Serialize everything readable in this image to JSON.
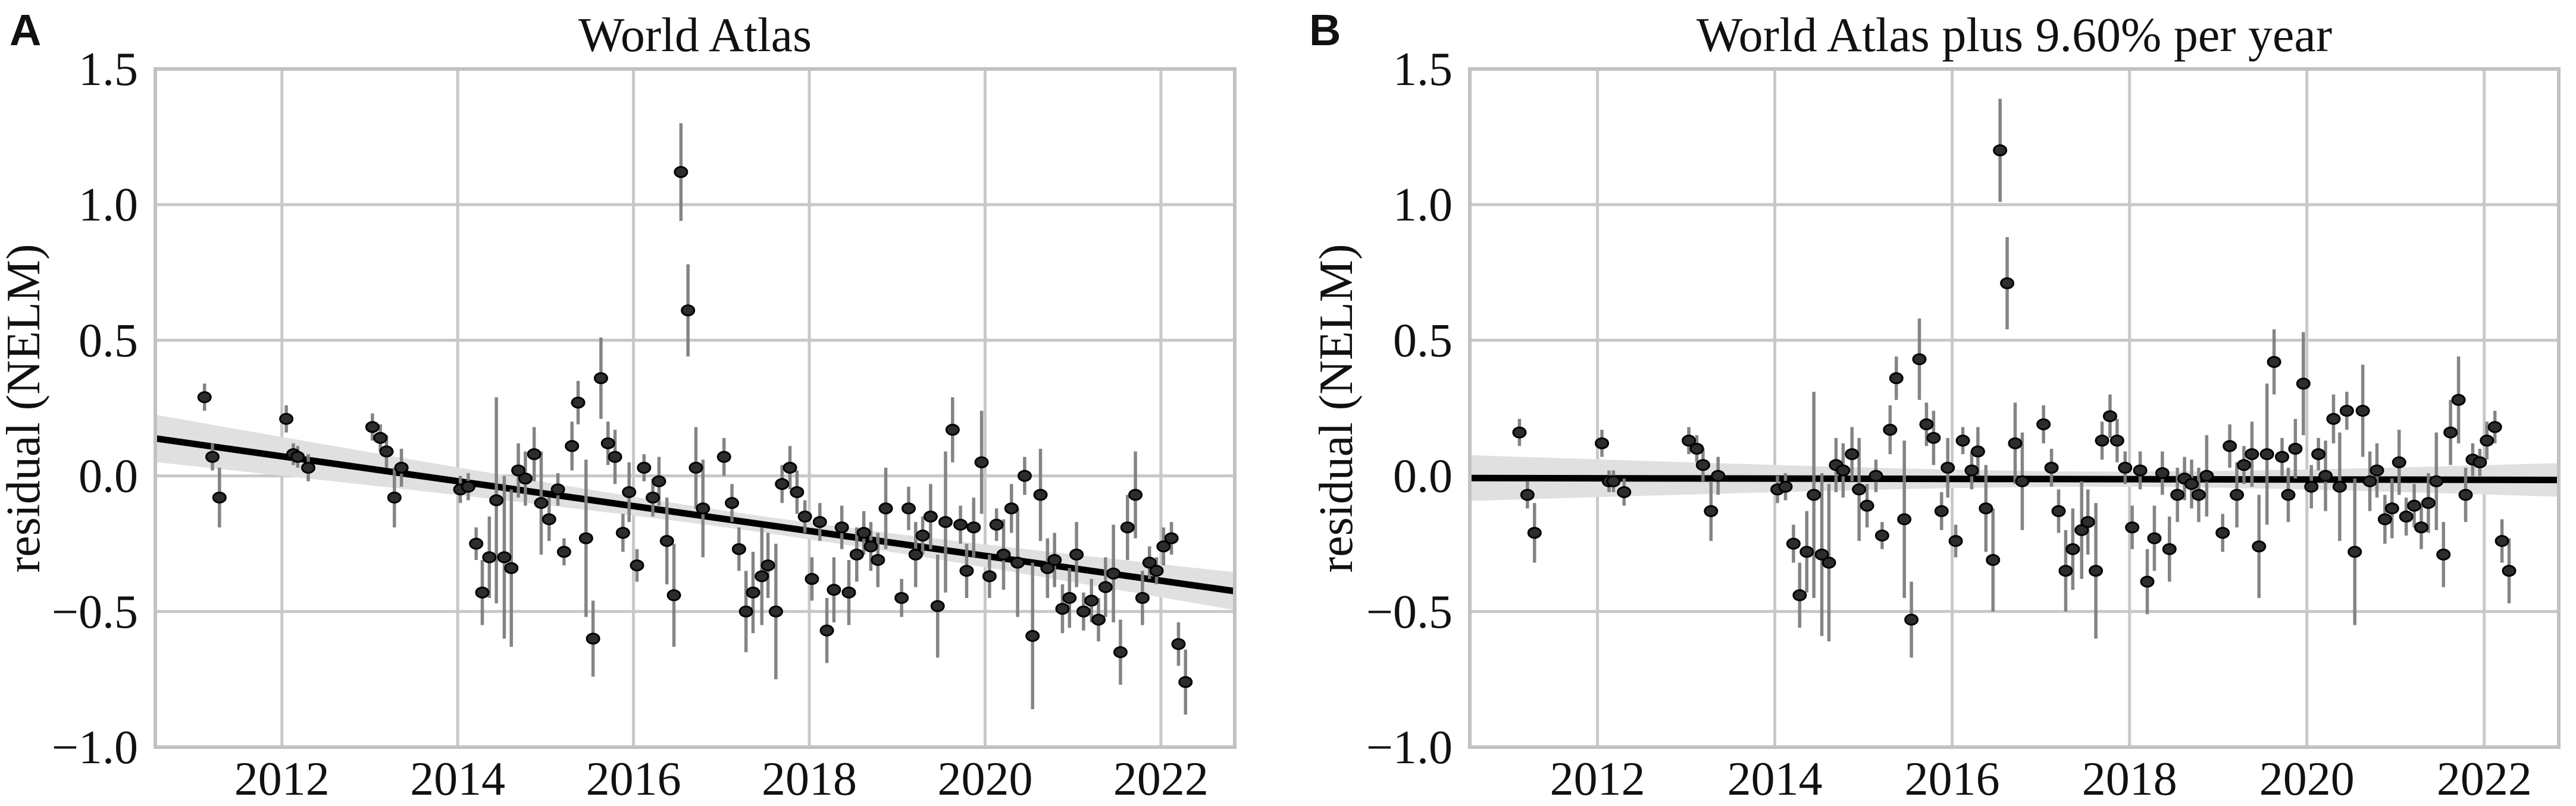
{
  "colors": {
    "background": "#ffffff",
    "grid": "#c8c8c8",
    "spine": "#c2c2c2",
    "confidence_band": "#e0e0e0",
    "trend_line": "#000000",
    "error_bar": "#7d7d7d",
    "marker_fill": "#2d2d2d",
    "marker_edge": "#000000",
    "text": "#111111"
  },
  "chart_data": [
    {
      "type": "scatter",
      "panel_label": "A",
      "title": "World Atlas",
      "xlabel": "",
      "ylabel": "residual (NELM)",
      "grid": true,
      "legend": "none",
      "xlim": [
        2010.56,
        2022.84
      ],
      "ylim": [
        -1.0,
        1.5
      ],
      "xtick_values": [
        2012,
        2014,
        2016,
        2018,
        2020,
        2022
      ],
      "xtick_labels": [
        "2012",
        "2014",
        "2016",
        "2018",
        "2020",
        "2022"
      ],
      "ytick_values": [
        1.5,
        1.0,
        0.5,
        0.0,
        -0.5,
        -1.0
      ],
      "ytick_labels": [
        "1.5",
        "1.0",
        "0.5",
        "0.0",
        "−0.5",
        "−1.0"
      ],
      "trend": {
        "x": [
          2010.56,
          2022.84
        ],
        "y": [
          0.138,
          -0.425
        ]
      },
      "band": {
        "center_year": 2017.5,
        "base_halfwidth": 0.03,
        "growth_per_year": 0.0118
      },
      "points": [
        [
          2011.12,
          0.29,
          0.05
        ],
        [
          2011.21,
          0.07,
          0.05
        ],
        [
          2011.29,
          -0.08,
          0.11
        ],
        [
          2012.05,
          0.21,
          0.05
        ],
        [
          2012.13,
          0.08,
          0.04
        ],
        [
          2012.18,
          0.07,
          0.04
        ],
        [
          2012.3,
          0.03,
          0.05
        ],
        [
          2013.03,
          0.18,
          0.05
        ],
        [
          2013.12,
          0.14,
          0.05
        ],
        [
          2013.19,
          0.09,
          0.06
        ],
        [
          2013.28,
          -0.08,
          0.11
        ],
        [
          2013.36,
          0.03,
          0.07
        ],
        [
          2014.03,
          -0.05,
          0.05
        ],
        [
          2014.12,
          -0.04,
          0.05
        ],
        [
          2014.21,
          -0.25,
          0.06
        ],
        [
          2014.28,
          -0.43,
          0.12
        ],
        [
          2014.36,
          -0.3,
          0.15
        ],
        [
          2014.44,
          -0.09,
          0.38
        ],
        [
          2014.53,
          -0.3,
          0.3
        ],
        [
          2014.61,
          -0.34,
          0.29
        ],
        [
          2014.69,
          0.02,
          0.1
        ],
        [
          2014.77,
          -0.01,
          0.1
        ],
        [
          2014.87,
          0.08,
          0.1
        ],
        [
          2014.95,
          -0.1,
          0.19
        ],
        [
          2015.04,
          -0.16,
          0.08
        ],
        [
          2015.14,
          -0.05,
          0.06
        ],
        [
          2015.21,
          -0.28,
          0.05
        ],
        [
          2015.3,
          0.11,
          0.09
        ],
        [
          2015.37,
          0.27,
          0.08
        ],
        [
          2015.46,
          -0.23,
          0.29
        ],
        [
          2015.54,
          -0.6,
          0.14
        ],
        [
          2015.63,
          0.36,
          0.15
        ],
        [
          2015.71,
          0.12,
          0.08
        ],
        [
          2015.79,
          0.07,
          0.1
        ],
        [
          2015.88,
          -0.21,
          0.07
        ],
        [
          2015.95,
          -0.06,
          0.11
        ],
        [
          2016.04,
          -0.33,
          0.06
        ],
        [
          2016.12,
          0.03,
          0.05
        ],
        [
          2016.22,
          -0.08,
          0.07
        ],
        [
          2016.29,
          -0.02,
          0.09
        ],
        [
          2016.38,
          -0.24,
          0.16
        ],
        [
          2016.46,
          -0.44,
          0.19
        ],
        [
          2016.54,
          1.12,
          0.18
        ],
        [
          2016.62,
          0.61,
          0.17
        ],
        [
          2016.71,
          0.03,
          0.15
        ],
        [
          2016.79,
          -0.12,
          0.18
        ],
        [
          2017.03,
          0.07,
          0.07
        ],
        [
          2017.12,
          -0.1,
          0.07
        ],
        [
          2017.2,
          -0.27,
          0.08
        ],
        [
          2017.28,
          -0.5,
          0.15
        ],
        [
          2017.36,
          -0.43,
          0.15
        ],
        [
          2017.46,
          -0.37,
          0.18
        ],
        [
          2017.53,
          -0.33,
          0.12
        ],
        [
          2017.62,
          -0.5,
          0.25
        ],
        [
          2017.69,
          -0.03,
          0.07
        ],
        [
          2017.78,
          0.03,
          0.08
        ],
        [
          2017.86,
          -0.06,
          0.08
        ],
        [
          2017.95,
          -0.15,
          0.06
        ],
        [
          2018.03,
          -0.38,
          0.08
        ],
        [
          2018.12,
          -0.17,
          0.07
        ],
        [
          2018.2,
          -0.57,
          0.12
        ],
        [
          2018.28,
          -0.42,
          0.12
        ],
        [
          2018.37,
          -0.19,
          0.08
        ],
        [
          2018.45,
          -0.43,
          0.12
        ],
        [
          2018.54,
          -0.29,
          0.1
        ],
        [
          2018.62,
          -0.21,
          0.08
        ],
        [
          2018.7,
          -0.26,
          0.09
        ],
        [
          2018.78,
          -0.31,
          0.1
        ],
        [
          2018.87,
          -0.12,
          0.15
        ],
        [
          2019.05,
          -0.45,
          0.07
        ],
        [
          2019.13,
          -0.12,
          0.08
        ],
        [
          2019.21,
          -0.29,
          0.12
        ],
        [
          2019.29,
          -0.22,
          0.07
        ],
        [
          2019.38,
          -0.15,
          0.12
        ],
        [
          2019.46,
          -0.48,
          0.19
        ],
        [
          2019.55,
          -0.17,
          0.26
        ],
        [
          2019.63,
          0.17,
          0.12
        ],
        [
          2019.72,
          -0.18,
          0.07
        ],
        [
          2019.79,
          -0.35,
          0.1
        ],
        [
          2019.87,
          -0.19,
          0.11
        ],
        [
          2019.96,
          0.05,
          0.19
        ],
        [
          2020.05,
          -0.37,
          0.08
        ],
        [
          2020.13,
          -0.18,
          0.06
        ],
        [
          2020.21,
          -0.29,
          0.13
        ],
        [
          2020.3,
          -0.12,
          0.09
        ],
        [
          2020.37,
          -0.32,
          0.2
        ],
        [
          2020.45,
          0.0,
          0.07
        ],
        [
          2020.54,
          -0.59,
          0.27
        ],
        [
          2020.63,
          -0.07,
          0.17
        ],
        [
          2020.71,
          -0.34,
          0.11
        ],
        [
          2020.79,
          -0.31,
          0.1
        ],
        [
          2020.88,
          -0.49,
          0.09
        ],
        [
          2020.96,
          -0.45,
          0.11
        ],
        [
          2021.04,
          -0.29,
          0.12
        ],
        [
          2021.12,
          -0.5,
          0.07
        ],
        [
          2021.21,
          -0.46,
          0.08
        ],
        [
          2021.29,
          -0.53,
          0.08
        ],
        [
          2021.37,
          -0.41,
          0.11
        ],
        [
          2021.46,
          -0.36,
          0.18
        ],
        [
          2021.54,
          -0.65,
          0.12
        ],
        [
          2021.62,
          -0.19,
          0.12
        ],
        [
          2021.71,
          -0.07,
          0.16
        ],
        [
          2021.79,
          -0.45,
          0.1
        ],
        [
          2021.87,
          -0.32,
          0.06
        ],
        [
          2021.95,
          -0.35,
          0.05
        ],
        [
          2022.03,
          -0.26,
          0.07
        ],
        [
          2022.12,
          -0.23,
          0.06
        ],
        [
          2022.2,
          -0.62,
          0.08
        ],
        [
          2022.28,
          -0.76,
          0.12
        ]
      ]
    },
    {
      "type": "scatter",
      "panel_label": "B",
      "title": "World Atlas plus 9.60% per year",
      "xlabel": "",
      "ylabel": "residual (NELM)",
      "grid": true,
      "legend": "none",
      "xlim": [
        2010.56,
        2022.84
      ],
      "ylim": [
        -1.0,
        1.5
      ],
      "xtick_values": [
        2012,
        2014,
        2016,
        2018,
        2020,
        2022
      ],
      "xtick_labels": [
        "2012",
        "2014",
        "2016",
        "2018",
        "2020",
        "2022"
      ],
      "ytick_values": [
        1.5,
        1.0,
        0.5,
        0.0,
        -0.5,
        -1.0
      ],
      "ytick_labels": [
        "1.5",
        "1.0",
        "0.5",
        "0.0",
        "−0.5",
        "−1.0"
      ],
      "trend": {
        "x": [
          2010.56,
          2022.84
        ],
        "y": [
          -0.008,
          -0.015
        ]
      },
      "band": {
        "center_year": 2017.8,
        "base_halfwidth": 0.028,
        "growth_per_year": 0.011
      },
      "points": [
        [
          2011.12,
          0.16,
          0.05
        ],
        [
          2011.21,
          -0.07,
          0.05
        ],
        [
          2011.29,
          -0.21,
          0.11
        ],
        [
          2012.05,
          0.12,
          0.05
        ],
        [
          2012.13,
          -0.02,
          0.04
        ],
        [
          2012.18,
          -0.02,
          0.04
        ],
        [
          2012.3,
          -0.06,
          0.05
        ],
        [
          2013.03,
          0.13,
          0.05
        ],
        [
          2013.12,
          0.1,
          0.05
        ],
        [
          2013.19,
          0.04,
          0.06
        ],
        [
          2013.28,
          -0.13,
          0.11
        ],
        [
          2013.36,
          0.0,
          0.07
        ],
        [
          2014.03,
          -0.05,
          0.05
        ],
        [
          2014.12,
          -0.04,
          0.05
        ],
        [
          2014.21,
          -0.25,
          0.07
        ],
        [
          2014.28,
          -0.44,
          0.12
        ],
        [
          2014.36,
          -0.28,
          0.15
        ],
        [
          2014.44,
          -0.07,
          0.38
        ],
        [
          2014.53,
          -0.29,
          0.3
        ],
        [
          2014.61,
          -0.32,
          0.29
        ],
        [
          2014.69,
          0.04,
          0.1
        ],
        [
          2014.77,
          0.02,
          0.1
        ],
        [
          2014.87,
          0.08,
          0.1
        ],
        [
          2014.95,
          -0.05,
          0.19
        ],
        [
          2015.04,
          -0.11,
          0.08
        ],
        [
          2015.14,
          0.0,
          0.06
        ],
        [
          2015.21,
          -0.22,
          0.05
        ],
        [
          2015.3,
          0.17,
          0.09
        ],
        [
          2015.37,
          0.36,
          0.08
        ],
        [
          2015.46,
          -0.16,
          0.29
        ],
        [
          2015.54,
          -0.53,
          0.14
        ],
        [
          2015.63,
          0.43,
          0.15
        ],
        [
          2015.71,
          0.19,
          0.08
        ],
        [
          2015.79,
          0.14,
          0.1
        ],
        [
          2015.88,
          -0.13,
          0.07
        ],
        [
          2015.95,
          0.03,
          0.11
        ],
        [
          2016.04,
          -0.24,
          0.06
        ],
        [
          2016.12,
          0.13,
          0.05
        ],
        [
          2016.22,
          0.02,
          0.07
        ],
        [
          2016.29,
          0.09,
          0.09
        ],
        [
          2016.38,
          -0.12,
          0.16
        ],
        [
          2016.46,
          -0.31,
          0.19
        ],
        [
          2016.54,
          1.2,
          0.19
        ],
        [
          2016.62,
          0.71,
          0.17
        ],
        [
          2016.71,
          0.12,
          0.15
        ],
        [
          2016.79,
          -0.02,
          0.18
        ],
        [
          2017.03,
          0.19,
          0.07
        ],
        [
          2017.12,
          0.03,
          0.07
        ],
        [
          2017.2,
          -0.13,
          0.08
        ],
        [
          2017.28,
          -0.35,
          0.15
        ],
        [
          2017.36,
          -0.27,
          0.15
        ],
        [
          2017.46,
          -0.2,
          0.18
        ],
        [
          2017.53,
          -0.17,
          0.12
        ],
        [
          2017.62,
          -0.35,
          0.25
        ],
        [
          2017.69,
          0.13,
          0.07
        ],
        [
          2017.78,
          0.22,
          0.08
        ],
        [
          2017.86,
          0.13,
          0.08
        ],
        [
          2017.95,
          0.03,
          0.06
        ],
        [
          2018.03,
          -0.19,
          0.08
        ],
        [
          2018.12,
          0.02,
          0.07
        ],
        [
          2018.2,
          -0.39,
          0.12
        ],
        [
          2018.28,
          -0.23,
          0.12
        ],
        [
          2018.37,
          0.01,
          0.08
        ],
        [
          2018.45,
          -0.27,
          0.12
        ],
        [
          2018.54,
          -0.07,
          0.1
        ],
        [
          2018.62,
          -0.01,
          0.08
        ],
        [
          2018.7,
          -0.03,
          0.09
        ],
        [
          2018.78,
          -0.07,
          0.1
        ],
        [
          2018.87,
          0.0,
          0.15
        ],
        [
          2019.05,
          -0.21,
          0.07
        ],
        [
          2019.13,
          0.11,
          0.08
        ],
        [
          2019.21,
          -0.07,
          0.12
        ],
        [
          2019.29,
          0.04,
          0.07
        ],
        [
          2019.38,
          0.08,
          0.12
        ],
        [
          2019.46,
          -0.26,
          0.19
        ],
        [
          2019.55,
          0.08,
          0.26
        ],
        [
          2019.63,
          0.42,
          0.12
        ],
        [
          2019.72,
          0.07,
          0.07
        ],
        [
          2019.79,
          -0.07,
          0.1
        ],
        [
          2019.87,
          0.1,
          0.11
        ],
        [
          2019.96,
          0.34,
          0.19
        ],
        [
          2020.05,
          -0.04,
          0.08
        ],
        [
          2020.13,
          0.08,
          0.06
        ],
        [
          2020.21,
          0.0,
          0.13
        ],
        [
          2020.3,
          0.21,
          0.09
        ],
        [
          2020.37,
          -0.04,
          0.2
        ],
        [
          2020.45,
          0.24,
          0.07
        ],
        [
          2020.54,
          -0.28,
          0.27
        ],
        [
          2020.63,
          0.24,
          0.17
        ],
        [
          2020.71,
          -0.02,
          0.11
        ],
        [
          2020.79,
          0.02,
          0.1
        ],
        [
          2020.88,
          -0.16,
          0.09
        ],
        [
          2020.96,
          -0.12,
          0.11
        ],
        [
          2021.04,
          0.05,
          0.12
        ],
        [
          2021.12,
          -0.15,
          0.07
        ],
        [
          2021.21,
          -0.11,
          0.08
        ],
        [
          2021.29,
          -0.19,
          0.08
        ],
        [
          2021.37,
          -0.1,
          0.11
        ],
        [
          2021.46,
          -0.02,
          0.18
        ],
        [
          2021.54,
          -0.29,
          0.12
        ],
        [
          2021.62,
          0.16,
          0.12
        ],
        [
          2021.71,
          0.28,
          0.16
        ],
        [
          2021.79,
          -0.07,
          0.1
        ],
        [
          2021.87,
          0.06,
          0.06
        ],
        [
          2021.95,
          0.05,
          0.05
        ],
        [
          2022.03,
          0.13,
          0.07
        ],
        [
          2022.12,
          0.18,
          0.06
        ],
        [
          2022.2,
          -0.24,
          0.08
        ],
        [
          2022.28,
          -0.35,
          0.12
        ]
      ]
    }
  ]
}
